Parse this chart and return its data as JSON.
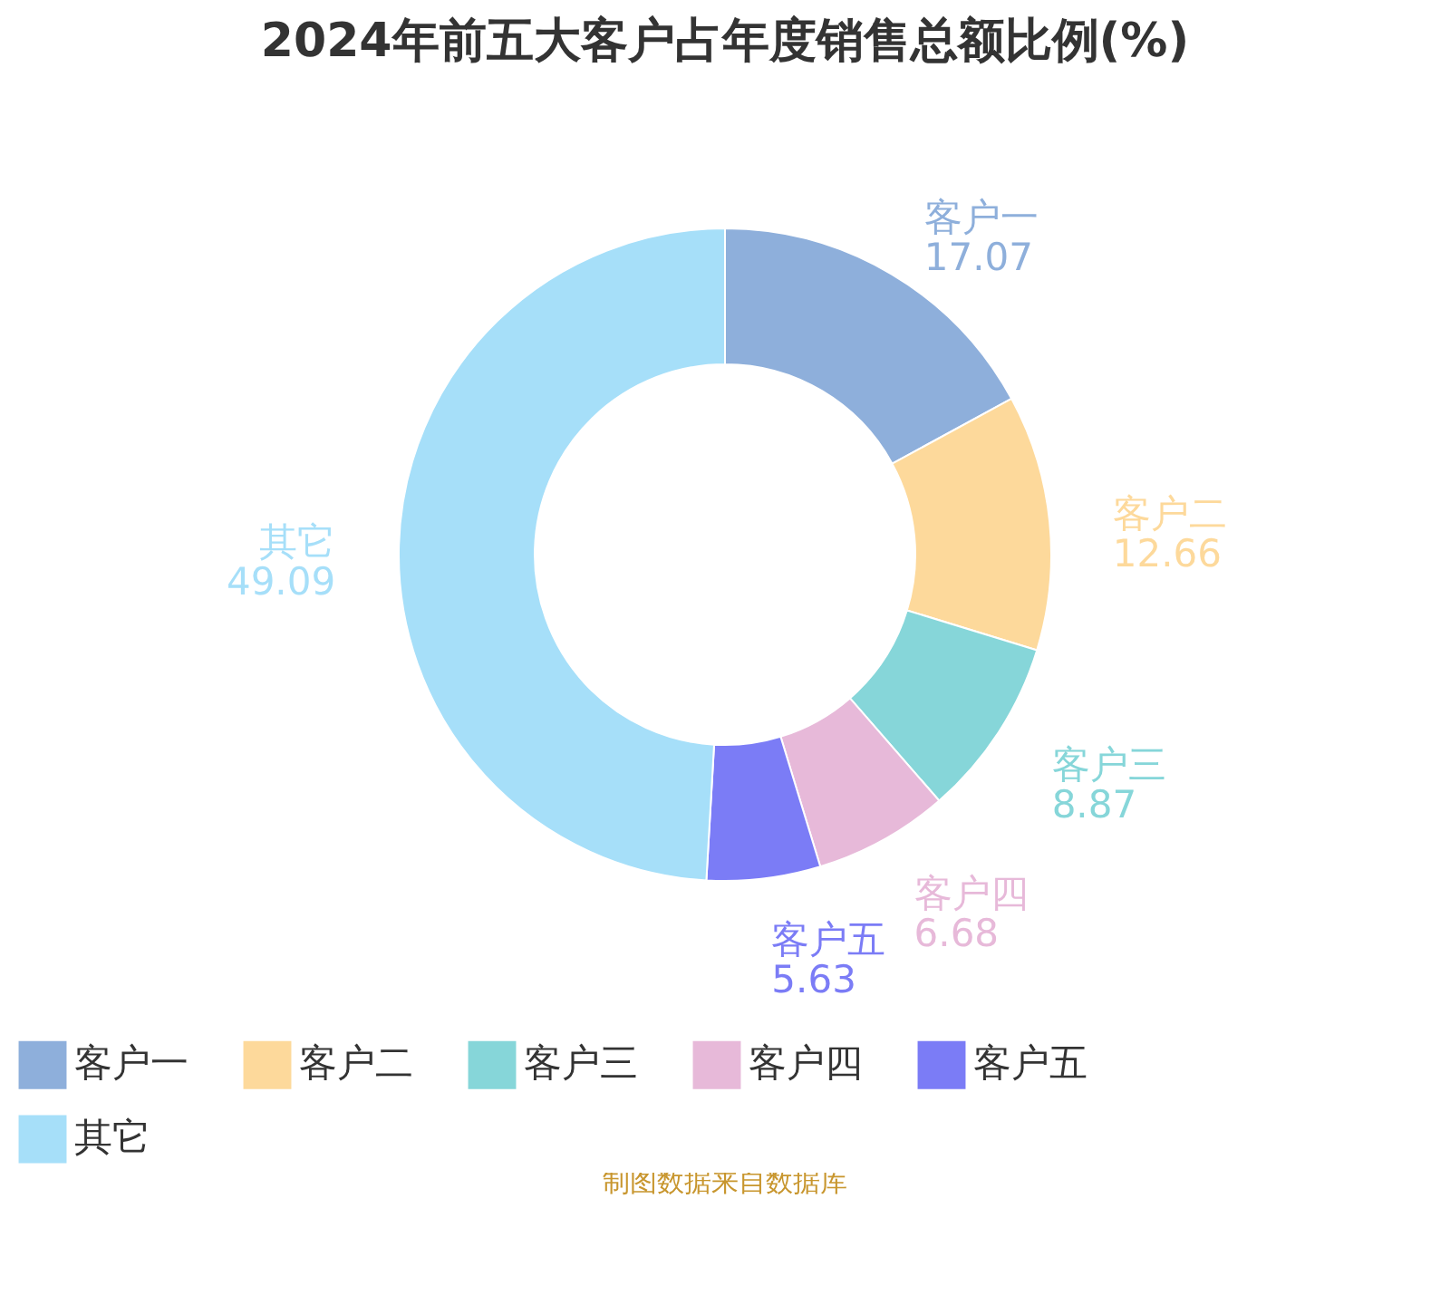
{
  "chart_data": {
    "type": "donut",
    "title": "2024年前五大客户占年度销售总额比例(%)",
    "categories": [
      "客户一",
      "客户二",
      "客户三",
      "客户四",
      "客户五",
      "其它"
    ],
    "values": [
      17.07,
      12.66,
      8.87,
      6.68,
      5.63,
      49.09
    ],
    "colors": [
      "#8eafdb",
      "#fdd99b",
      "#86d6d9",
      "#e7b9d9",
      "#7b7cf6",
      "#a6dff9"
    ],
    "data_labels": true,
    "legend": "bottom",
    "annotations": [
      "制图数据来自数据库"
    ]
  }
}
